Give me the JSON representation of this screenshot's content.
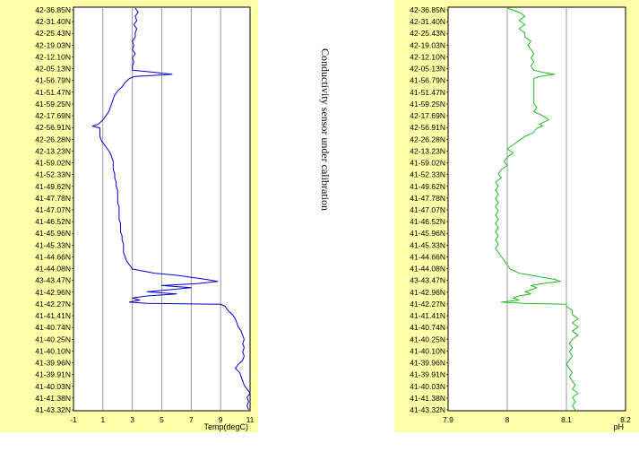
{
  "annotation": "Conductivity sensor under calibration",
  "colors": {
    "panel_bg": "#ffffa8",
    "plot_bg": "#ffffff",
    "grid": "#808080",
    "temp_line": "#0000cc",
    "ph_line": "#22bb22",
    "arrow": "#e00000"
  },
  "depth_arrow_icon": "down-arrow-icon",
  "chart_data": [
    {
      "type": "line",
      "xlabel": "Temp(degC)",
      "xlim": [
        -1,
        11
      ],
      "xticks": [
        "-1",
        "1",
        "3",
        "5",
        "7",
        "9",
        "11"
      ],
      "grid": true,
      "series": [
        {
          "points": [
            [
              3.2,
              0
            ],
            [
              3.4,
              1
            ],
            [
              3.2,
              2
            ],
            [
              3.3,
              3
            ],
            [
              3.1,
              4
            ],
            [
              3.3,
              5
            ],
            [
              3.2,
              6
            ],
            [
              3.2,
              7
            ],
            [
              3.0,
              8
            ],
            [
              3.1,
              9
            ],
            [
              3.0,
              10
            ],
            [
              3.2,
              11
            ],
            [
              3.0,
              12
            ],
            [
              3.1,
              13
            ],
            [
              3.0,
              14
            ],
            [
              3.0,
              15
            ],
            [
              4.5,
              15.5
            ],
            [
              5.7,
              16
            ],
            [
              3.2,
              16.5
            ],
            [
              2.8,
              17
            ],
            [
              2.5,
              18
            ],
            [
              2.3,
              19
            ],
            [
              2.0,
              20
            ],
            [
              1.8,
              21
            ],
            [
              1.7,
              22
            ],
            [
              1.6,
              23
            ],
            [
              1.5,
              24
            ],
            [
              1.4,
              25
            ],
            [
              1.2,
              26
            ],
            [
              1.0,
              27
            ],
            [
              0.7,
              28
            ],
            [
              0.3,
              28.5
            ],
            [
              0.8,
              29
            ],
            [
              0.8,
              30
            ],
            [
              0.8,
              31
            ],
            [
              0.9,
              32
            ],
            [
              1.1,
              33
            ],
            [
              1.3,
              34
            ],
            [
              1.5,
              35
            ],
            [
              1.6,
              36
            ],
            [
              1.7,
              37
            ],
            [
              1.7,
              38
            ],
            [
              1.7,
              39
            ],
            [
              1.8,
              40
            ],
            [
              1.8,
              41
            ],
            [
              1.9,
              42
            ],
            [
              1.9,
              43
            ],
            [
              2.0,
              44
            ],
            [
              2.0,
              45
            ],
            [
              2.0,
              46
            ],
            [
              2.0,
              47
            ],
            [
              2.1,
              48
            ],
            [
              2.1,
              49
            ],
            [
              2.1,
              50
            ],
            [
              2.1,
              51
            ],
            [
              2.2,
              52
            ],
            [
              2.2,
              53
            ],
            [
              2.2,
              54
            ],
            [
              2.3,
              55
            ],
            [
              2.3,
              56
            ],
            [
              2.4,
              57
            ],
            [
              2.4,
              58
            ],
            [
              2.4,
              59
            ],
            [
              2.5,
              60
            ],
            [
              2.6,
              61
            ],
            [
              2.8,
              62
            ],
            [
              3.0,
              63
            ],
            [
              4.5,
              64
            ],
            [
              6.0,
              64.5
            ],
            [
              7.0,
              65
            ],
            [
              8.0,
              65.5
            ],
            [
              8.8,
              66
            ],
            [
              7.5,
              66.5
            ],
            [
              5.0,
              67
            ],
            [
              7.0,
              67.5
            ],
            [
              5.5,
              68
            ],
            [
              4.0,
              68.5
            ],
            [
              6.0,
              69
            ],
            [
              4.0,
              69.5
            ],
            [
              3.0,
              70
            ],
            [
              3.5,
              70.5
            ],
            [
              2.8,
              71
            ],
            [
              4.0,
              71.3
            ],
            [
              9.0,
              71.5
            ],
            [
              9.3,
              72
            ],
            [
              9.5,
              73
            ],
            [
              9.8,
              74
            ],
            [
              10.0,
              75
            ],
            [
              10.1,
              76
            ],
            [
              10.2,
              77
            ],
            [
              10.4,
              78
            ],
            [
              10.5,
              79
            ],
            [
              10.6,
              80
            ],
            [
              10.5,
              81
            ],
            [
              10.6,
              82
            ],
            [
              10.5,
              83
            ],
            [
              10.6,
              84
            ],
            [
              10.5,
              85
            ],
            [
              10.2,
              86
            ],
            [
              10.0,
              87
            ],
            [
              10.3,
              88
            ],
            [
              10.4,
              89
            ],
            [
              10.5,
              90
            ],
            [
              10.6,
              91
            ],
            [
              10.8,
              92
            ],
            [
              11.0,
              93
            ],
            [
              10.8,
              94
            ],
            [
              10.9,
              95
            ],
            [
              10.8,
              96
            ],
            [
              10.9,
              97
            ]
          ]
        }
      ]
    },
    {
      "type": "line",
      "xlabel": "pH",
      "xlim": [
        7.9,
        8.2
      ],
      "xticks": [
        "7.9",
        "8",
        "8.1",
        "8.2"
      ],
      "grid": true,
      "series": [
        {
          "points": [
            [
              8.0,
              0
            ],
            [
              8.02,
              1
            ],
            [
              8.03,
              2
            ],
            [
              8.02,
              3
            ],
            [
              8.03,
              4
            ],
            [
              8.02,
              5
            ],
            [
              8.03,
              6
            ],
            [
              8.03,
              7
            ],
            [
              8.04,
              8
            ],
            [
              8.035,
              9
            ],
            [
              8.04,
              10
            ],
            [
              8.045,
              11
            ],
            [
              8.04,
              12
            ],
            [
              8.045,
              13
            ],
            [
              8.04,
              14
            ],
            [
              8.045,
              15
            ],
            [
              8.06,
              15.5
            ],
            [
              8.08,
              16
            ],
            [
              8.055,
              16.5
            ],
            [
              8.045,
              17
            ],
            [
              8.045,
              18
            ],
            [
              8.045,
              19
            ],
            [
              8.045,
              20
            ],
            [
              8.045,
              21
            ],
            [
              8.045,
              22
            ],
            [
              8.045,
              23
            ],
            [
              8.05,
              24
            ],
            [
              8.045,
              25
            ],
            [
              8.06,
              26
            ],
            [
              8.07,
              27
            ],
            [
              8.055,
              28
            ],
            [
              8.06,
              28.5
            ],
            [
              8.05,
              29
            ],
            [
              8.045,
              30
            ],
            [
              8.03,
              31
            ],
            [
              8.02,
              32
            ],
            [
              8.01,
              33
            ],
            [
              8.0,
              34
            ],
            [
              8.01,
              35
            ],
            [
              8.0,
              36
            ],
            [
              7.995,
              37
            ],
            [
              8.0,
              38
            ],
            [
              7.99,
              39
            ],
            [
              7.985,
              40
            ],
            [
              7.99,
              41
            ],
            [
              7.98,
              42
            ],
            [
              7.985,
              43
            ],
            [
              7.98,
              44
            ],
            [
              7.985,
              45
            ],
            [
              7.98,
              46
            ],
            [
              7.985,
              47
            ],
            [
              7.98,
              48
            ],
            [
              7.985,
              49
            ],
            [
              7.98,
              50
            ],
            [
              7.985,
              51
            ],
            [
              7.98,
              52
            ],
            [
              7.985,
              53
            ],
            [
              7.98,
              54
            ],
            [
              7.985,
              55
            ],
            [
              7.98,
              56
            ],
            [
              7.985,
              57
            ],
            [
              7.98,
              58
            ],
            [
              7.985,
              59
            ],
            [
              7.99,
              60
            ],
            [
              7.995,
              61
            ],
            [
              8.0,
              62
            ],
            [
              8.005,
              63
            ],
            [
              8.02,
              64
            ],
            [
              8.04,
              64.5
            ],
            [
              8.06,
              65
            ],
            [
              8.08,
              65.5
            ],
            [
              8.09,
              66
            ],
            [
              8.06,
              66.5
            ],
            [
              8.04,
              67
            ],
            [
              8.05,
              67.5
            ],
            [
              8.04,
              68
            ],
            [
              8.03,
              68.5
            ],
            [
              8.04,
              69
            ],
            [
              8.02,
              69.5
            ],
            [
              8.01,
              70
            ],
            [
              8.02,
              70.5
            ],
            [
              7.99,
              71
            ],
            [
              8.03,
              71.3
            ],
            [
              8.1,
              71.5
            ],
            [
              8.1,
              72
            ],
            [
              8.11,
              73
            ],
            [
              8.11,
              74
            ],
            [
              8.12,
              75
            ],
            [
              8.11,
              76
            ],
            [
              8.12,
              77
            ],
            [
              8.11,
              78
            ],
            [
              8.12,
              79
            ],
            [
              8.11,
              80
            ],
            [
              8.105,
              81
            ],
            [
              8.11,
              82
            ],
            [
              8.105,
              83
            ],
            [
              8.11,
              84
            ],
            [
              8.105,
              85
            ],
            [
              8.1,
              86
            ],
            [
              8.105,
              87
            ],
            [
              8.11,
              88
            ],
            [
              8.105,
              89
            ],
            [
              8.11,
              90
            ],
            [
              8.115,
              91
            ],
            [
              8.11,
              92
            ],
            [
              8.12,
              93
            ],
            [
              8.11,
              94
            ],
            [
              8.115,
              95
            ],
            [
              8.11,
              96
            ],
            [
              8.115,
              97
            ]
          ]
        }
      ]
    }
  ],
  "latitude_labels": [
    "42-36.85N",
    "42-31.40N",
    "42-25.43N",
    "42-19.03N",
    "42-12.10N",
    "42-05.13N",
    "41-56.79N",
    "41-51.47N",
    "41-59.25N",
    "42-17.69N",
    "42-56.91N",
    "42-26.28N",
    "42-13.23N",
    "41-59.02N",
    "41-52.33N",
    "41-49.62N",
    "41-47.78N",
    "41-47.07N",
    "41-46.52N",
    "41-45.96N",
    "41-45.33N",
    "41-44.66N",
    "41-44.08N",
    "43-43.47N",
    "41-42.96N",
    "41-42.27N",
    "41-41.41N",
    "41-40.74N",
    "41-40.25N",
    "41-40.10N",
    "41-39.96N",
    "41-39.91N",
    "41-40.03N",
    "41-41.38N",
    "41-43.32N"
  ]
}
